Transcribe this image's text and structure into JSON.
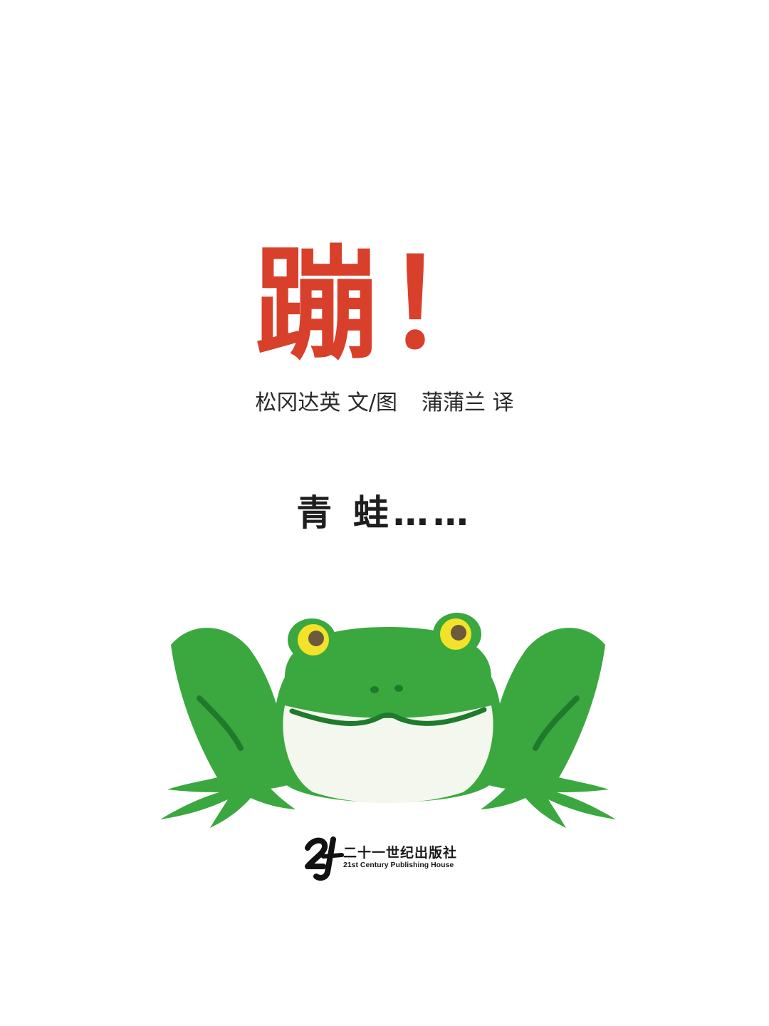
{
  "page": {
    "title": "蹦！",
    "author_credit": "松冈达英 文/图",
    "translator_credit": "蒲蒲兰 译",
    "subtitle": "青 蛙……"
  },
  "illustration": {
    "subject": "frog",
    "colors": {
      "body": "#3aa83f",
      "body_dark": "#1f7a2c",
      "belly": "#f3f7ee",
      "eye_ring": "#f2e22a",
      "pupil": "#6b5a3c"
    }
  },
  "publisher": {
    "logo_mark": "21",
    "name_cn": "二十一世纪出版社",
    "name_en": "21st Century Publishing House"
  },
  "colors": {
    "title": "#d8402c",
    "text": "#2a2a2a"
  }
}
